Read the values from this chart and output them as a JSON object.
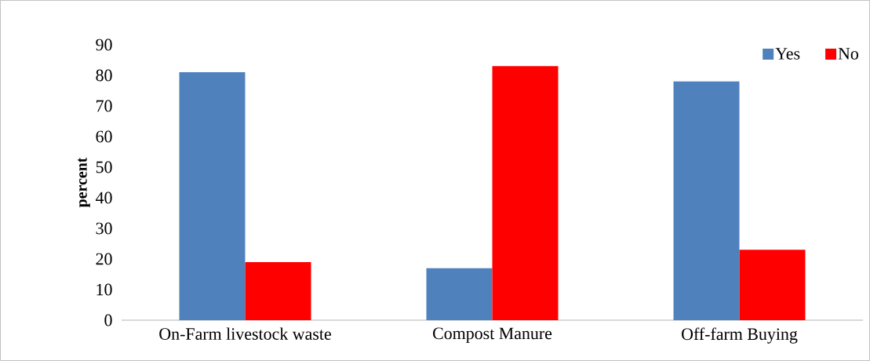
{
  "chart_data": {
    "type": "bar",
    "ylabel": "percent",
    "categories": [
      "On-Farm livestock waste",
      "Compost Manure",
      "Off-farm Buying"
    ],
    "series": [
      {
        "name": "Yes",
        "color": "#4f81bd",
        "values": [
          81,
          17,
          78
        ]
      },
      {
        "name": "No",
        "color": "#ff0000",
        "values": [
          19,
          83,
          23
        ]
      }
    ],
    "ylim": [
      0,
      90
    ],
    "yticks": [
      0,
      10,
      20,
      30,
      40,
      50,
      60,
      70,
      80,
      90
    ],
    "legend": "top right"
  }
}
